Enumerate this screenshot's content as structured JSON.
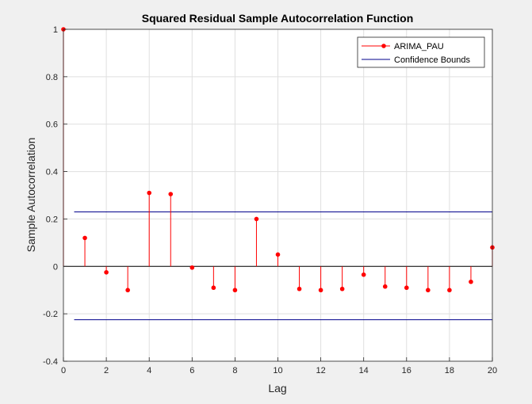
{
  "chart_data": {
    "type": "stem",
    "title": "Squared Residual Sample Autocorrelation Function",
    "xlabel": "Lag",
    "ylabel": "Sample Autocorrelation",
    "xlim": [
      0,
      20
    ],
    "ylim": [
      -0.4,
      1
    ],
    "xticks": [
      0,
      2,
      4,
      6,
      8,
      10,
      12,
      14,
      16,
      18,
      20
    ],
    "yticks": [
      -0.4,
      -0.2,
      0,
      0.2,
      0.4,
      0.6,
      0.8,
      1
    ],
    "ytick_labels": [
      "-0.4",
      "-0.2",
      "0",
      "0.2",
      "0.4",
      "0.6",
      "0.8",
      "1"
    ],
    "grid": true,
    "legend_position": "top-right",
    "series": [
      {
        "name": "ARIMA_PAU",
        "color": "#ff0000",
        "x": [
          0,
          1,
          2,
          3,
          4,
          5,
          6,
          7,
          8,
          9,
          10,
          11,
          12,
          13,
          14,
          15,
          16,
          17,
          18,
          19,
          20
        ],
        "values": [
          1.0,
          0.12,
          -0.025,
          -0.1,
          0.31,
          0.305,
          -0.005,
          -0.09,
          -0.1,
          0.2,
          0.05,
          -0.095,
          -0.1,
          -0.095,
          -0.035,
          -0.085,
          -0.09,
          -0.1,
          -0.1,
          -0.065,
          0.08
        ]
      }
    ],
    "confidence_bounds": {
      "name": "Confidence Bounds",
      "color": "#00008b",
      "upper": 0.23,
      "lower": -0.225,
      "x_range": [
        0.5,
        20
      ]
    }
  }
}
